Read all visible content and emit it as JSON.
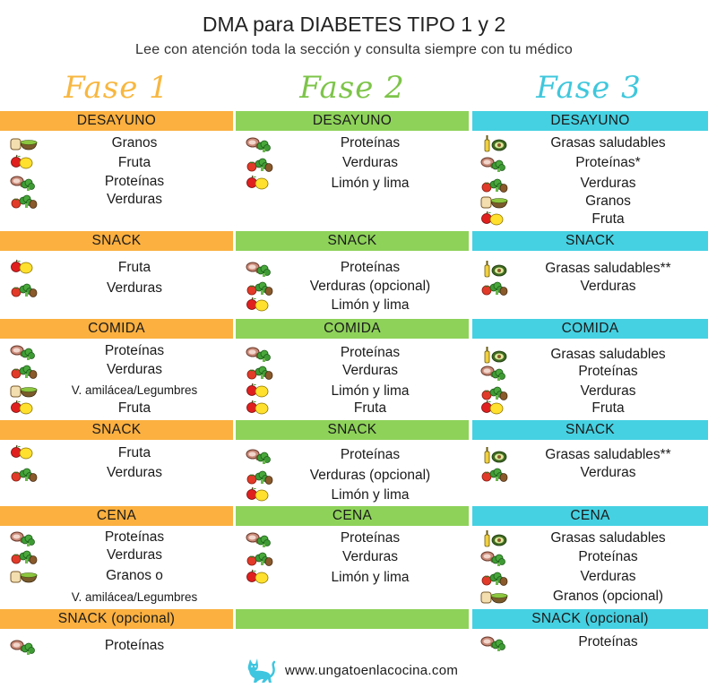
{
  "header": {
    "title": "DMA para DIABETES TIPO 1 y 2",
    "subtitle": "Lee con atención toda la sección y consulta siempre con tu médico"
  },
  "colors": {
    "fase1": "#fbb040",
    "fase2": "#8ed25a",
    "fase3": "#45d1e2"
  },
  "icon_legend": {
    "meat": "meat-icon",
    "veg": "vegetables-icon",
    "fruit": "fruit-icon",
    "grain": "grains-icon",
    "lemon": "lemon-lime-icon",
    "fat": "healthy-fats-icon"
  },
  "phases": [
    {
      "title": "Fase 1",
      "sections": [
        {
          "label": "DESAYUNO",
          "items": [
            {
              "icon": "grain",
              "text": "Granos"
            },
            {
              "icon": "fruit",
              "text": "Fruta"
            },
            {
              "icon": "meat",
              "text": "Proteínas"
            },
            {
              "icon": "veg",
              "text": "Verduras"
            }
          ]
        },
        {
          "label": "SNACK",
          "items": [
            {
              "icon": "fruit",
              "text": "Fruta"
            },
            {
              "icon": "veg",
              "text": "Verduras"
            }
          ]
        },
        {
          "label": "COMIDA",
          "items": [
            {
              "icon": "meat",
              "text": "Proteínas"
            },
            {
              "icon": "veg",
              "text": "Verduras"
            },
            {
              "icon": "grain",
              "text": "V. amilácea/Legumbres"
            },
            {
              "icon": "fruit",
              "text": "Fruta"
            }
          ]
        },
        {
          "label": "SNACK",
          "items": [
            {
              "icon": "fruit",
              "text": "Fruta"
            },
            {
              "icon": "veg",
              "text": "Verduras"
            }
          ]
        },
        {
          "label": "CENA",
          "items": [
            {
              "icon": "meat",
              "text": "Proteínas"
            },
            {
              "icon": "veg",
              "text": "Verduras"
            },
            {
              "icon": "grain",
              "text": "Granos o"
            },
            {
              "icon": "",
              "text": "V. amilácea/Legumbres"
            }
          ]
        },
        {
          "label": "SNACK (opcional)",
          "items": [
            {
              "icon": "meat",
              "text": "Proteínas"
            }
          ]
        }
      ]
    },
    {
      "title": "Fase 2",
      "sections": [
        {
          "label": "DESAYUNO",
          "items": [
            {
              "icon": "meat",
              "text": "Proteínas"
            },
            {
              "icon": "veg",
              "text": "Verduras"
            },
            {
              "icon": "lemon",
              "text": "Limón y lima"
            }
          ]
        },
        {
          "label": "SNACK",
          "items": [
            {
              "icon": "meat",
              "text": "Proteínas"
            },
            {
              "icon": "veg",
              "text": "Verduras (opcional)"
            },
            {
              "icon": "lemon",
              "text": "Limón y lima"
            }
          ]
        },
        {
          "label": "COMIDA",
          "items": [
            {
              "icon": "meat",
              "text": "Proteínas"
            },
            {
              "icon": "veg",
              "text": "Verduras"
            },
            {
              "icon": "lemon",
              "text": "Limón y lima"
            },
            {
              "icon": "fruit",
              "text": "Fruta"
            }
          ]
        },
        {
          "label": "SNACK",
          "items": [
            {
              "icon": "meat",
              "text": "Proteínas"
            },
            {
              "icon": "veg",
              "text": "Verduras (opcional)"
            },
            {
              "icon": "lemon",
              "text": "Limón y lima"
            }
          ]
        },
        {
          "label": "CENA",
          "items": [
            {
              "icon": "meat",
              "text": "Proteínas"
            },
            {
              "icon": "veg",
              "text": "Verduras"
            },
            {
              "icon": "lemon",
              "text": "Limón y lima"
            }
          ]
        },
        {
          "label": "",
          "items": []
        }
      ]
    },
    {
      "title": "Fase 3",
      "sections": [
        {
          "label": "DESAYUNO",
          "items": [
            {
              "icon": "fat",
              "text": "Grasas saludables"
            },
            {
              "icon": "meat",
              "text": "Proteínas*"
            },
            {
              "icon": "veg",
              "text": "Verduras"
            },
            {
              "icon": "grain",
              "text": "Granos"
            },
            {
              "icon": "fruit",
              "text": "Fruta"
            }
          ]
        },
        {
          "label": "SNACK",
          "items": [
            {
              "icon": "fat",
              "text": "Grasas saludables**"
            },
            {
              "icon": "veg",
              "text": "Verduras"
            }
          ]
        },
        {
          "label": "COMIDA",
          "items": [
            {
              "icon": "fat",
              "text": "Grasas saludables"
            },
            {
              "icon": "meat",
              "text": "Proteínas"
            },
            {
              "icon": "veg",
              "text": "Verduras"
            },
            {
              "icon": "fruit",
              "text": "Fruta"
            }
          ]
        },
        {
          "label": "SNACK",
          "items": [
            {
              "icon": "fat",
              "text": "Grasas saludables**"
            },
            {
              "icon": "veg",
              "text": "Verduras"
            }
          ]
        },
        {
          "label": "CENA",
          "items": [
            {
              "icon": "fat",
              "text": "Grasas saludables"
            },
            {
              "icon": "meat",
              "text": "Proteínas"
            },
            {
              "icon": "veg",
              "text": "Verduras"
            },
            {
              "icon": "grain",
              "text": "Granos (opcional)"
            }
          ]
        },
        {
          "label": "SNACK (opcional)",
          "items": [
            {
              "icon": "meat",
              "text": "Proteínas"
            }
          ]
        }
      ]
    }
  ],
  "footer": {
    "icon": "cat-icon",
    "url": "www.ungatoenlacocina.com"
  }
}
